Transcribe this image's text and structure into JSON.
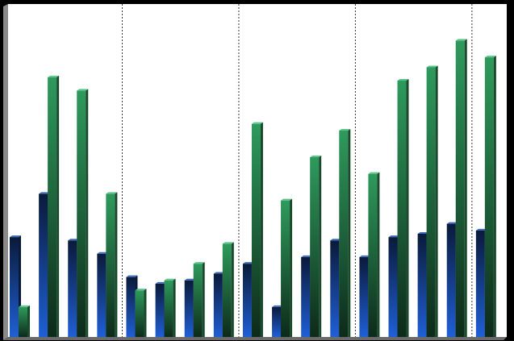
{
  "chart_data": {
    "type": "bar",
    "categories": [
      null,
      null,
      null,
      null,
      null,
      null,
      null,
      null,
      null,
      null,
      null,
      null,
      null,
      null,
      null,
      null,
      null
    ],
    "series": [
      {
        "color": "#1f5fd6",
        "values": [
          30,
          43,
          29,
          25,
          18,
          16,
          17,
          19,
          22,
          9,
          24,
          29,
          24,
          30,
          31,
          34,
          32
        ]
      },
      {
        "color": "#2e9a5c",
        "values": [
          9,
          78,
          74,
          43,
          14,
          17,
          22,
          28,
          64,
          41,
          54,
          62,
          49,
          77,
          81,
          89,
          84
        ]
      }
    ],
    "ylim": [
      0,
      100
    ]
  }
}
